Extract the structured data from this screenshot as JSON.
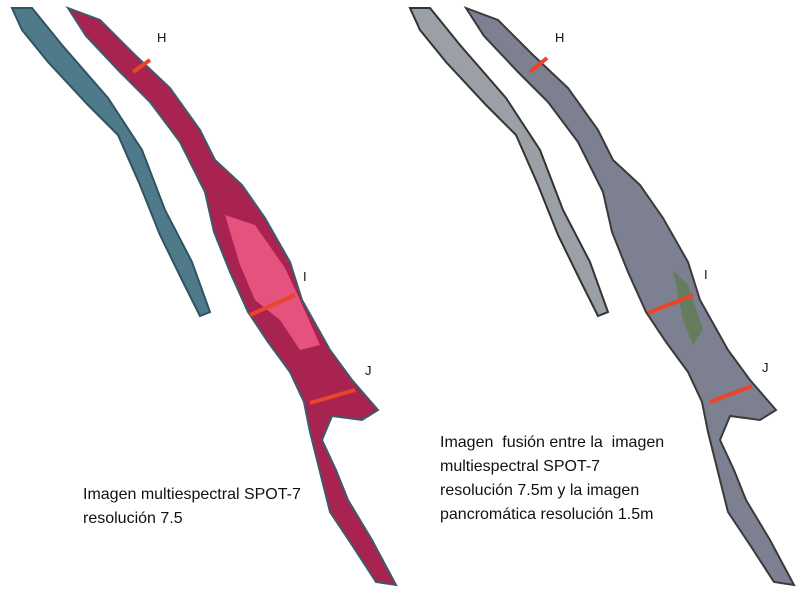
{
  "left_panel": {
    "labels": [
      "H",
      "I",
      "J"
    ],
    "caption": [
      "Imagen multiespectral SPOT-7",
      "resolución 7.5"
    ]
  },
  "right_panel": {
    "labels": [
      "H",
      "I",
      "J"
    ],
    "caption": [
      "Imagen  fusión entre la  imagen",
      "multiespectral SPOT-7",
      "resolución 7.5m y la imagen",
      "pancromática resolución 1.5m"
    ]
  }
}
